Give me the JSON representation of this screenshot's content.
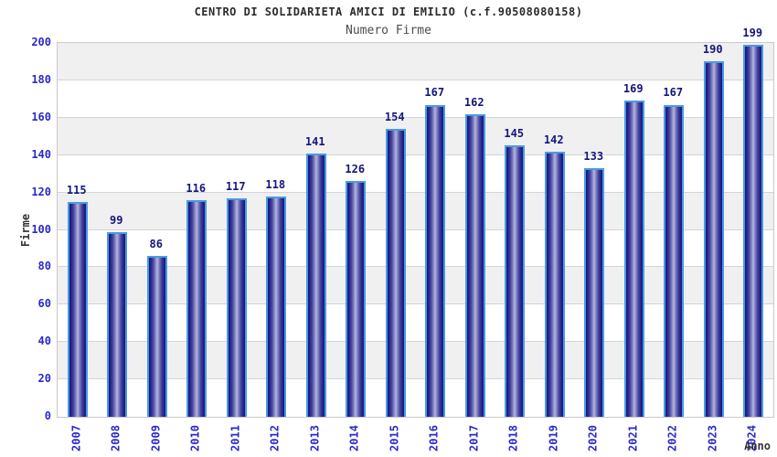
{
  "chart_data": {
    "type": "bar",
    "title": "CENTRO DI SOLIDARIETA AMICI DI EMILIO (c.f.90508080158)",
    "subtitle": "Numero Firme",
    "xlabel": "Anno",
    "ylabel": "Firme",
    "categories": [
      "2007",
      "2008",
      "2009",
      "2010",
      "2011",
      "2012",
      "2013",
      "2014",
      "2015",
      "2016",
      "2017",
      "2018",
      "2019",
      "2020",
      "2021",
      "2022",
      "2023",
      "2024"
    ],
    "values": [
      115,
      99,
      86,
      116,
      117,
      118,
      141,
      126,
      154,
      167,
      162,
      145,
      142,
      133,
      169,
      167,
      190,
      199
    ],
    "ylim": [
      0,
      200
    ],
    "ytick_step": 20,
    "legend_position": "none",
    "grid": "horizontal gridlines every 20 units with alternating gray/white bands",
    "bar_labels_shown": true,
    "colors": {
      "bar_border": "#4a9ae2",
      "bar_dark": "#17177e",
      "bar_light": "#b0b0dc",
      "value_label": "#15157d",
      "tick_label": "#2a2ac8",
      "band_gray": "#f0f0f0",
      "grid_line": "#d4d4d4",
      "title_text": "#2b2b2b",
      "subtitle_text": "#4d4d4d",
      "axis_label": "#333333"
    }
  }
}
